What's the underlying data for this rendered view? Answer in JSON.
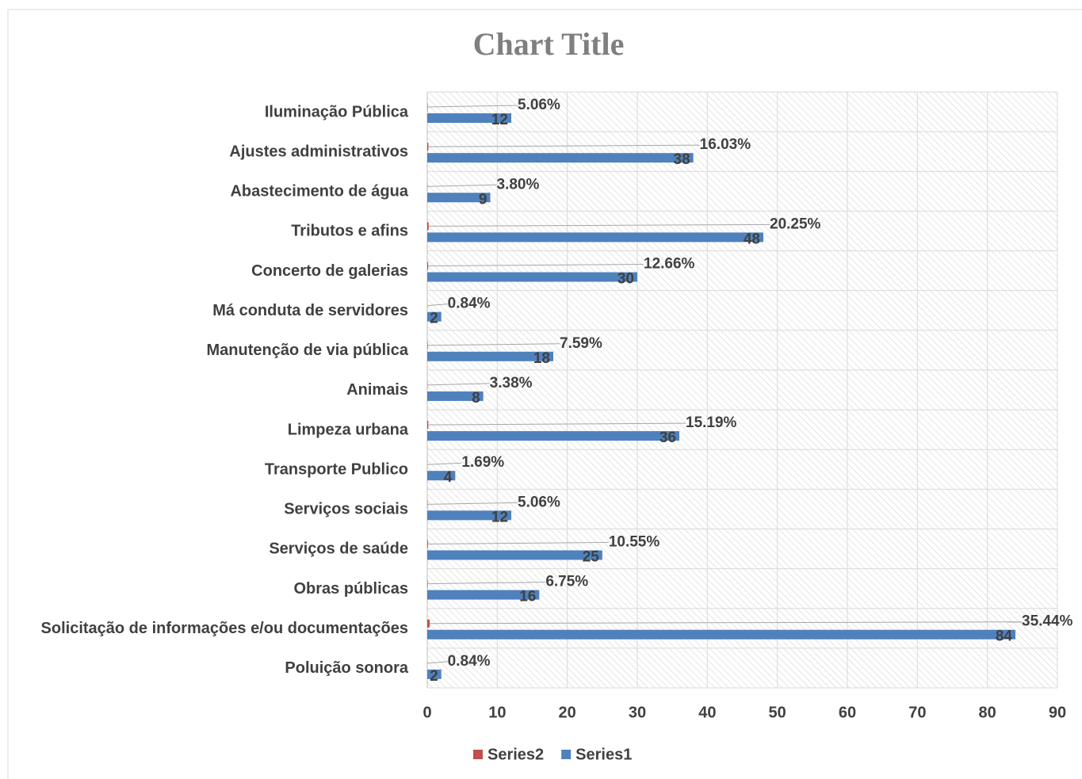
{
  "chart_data": {
    "type": "bar",
    "orientation": "horizontal",
    "title": "Chart Title",
    "categories": [
      "Iluminação Pública",
      "Ajustes administrativos",
      "Abastecimento de água",
      "Tributos e afins",
      "Concerto de galerias",
      "Má conduta de servidores",
      "Manutenção de via pública",
      "Animais",
      "Limpeza urbana",
      "Transporte Publico",
      "Serviços sociais",
      "Serviços de saúde",
      "Obras públicas",
      "Solicitação de informações e/ou documentações",
      "Poluição sonora"
    ],
    "series": [
      {
        "name": "Series2",
        "color": "#c0504d",
        "values": [
          0.0506,
          0.1603,
          0.038,
          0.2025,
          0.1266,
          0.0084,
          0.0759,
          0.0338,
          0.1519,
          0.0169,
          0.0506,
          0.1055,
          0.0675,
          0.3544,
          0.0084
        ],
        "value_labels": [
          "5.06%",
          "16.03%",
          "3.80%",
          "20.25%",
          "12.66%",
          "0.84%",
          "7.59%",
          "3.38%",
          "15.19%",
          "1.69%",
          "5.06%",
          "10.55%",
          "6.75%",
          "35.44%",
          "0.84%"
        ]
      },
      {
        "name": "Series1",
        "color": "#4f81bd",
        "values": [
          12,
          38,
          9,
          48,
          30,
          2,
          18,
          8,
          36,
          4,
          12,
          25,
          16,
          84,
          2
        ]
      }
    ],
    "xlim": [
      0,
      90
    ],
    "xticks": [
      0,
      10,
      20,
      30,
      40,
      50,
      60,
      70,
      80,
      90
    ],
    "grid": true,
    "legend": "bottom"
  }
}
